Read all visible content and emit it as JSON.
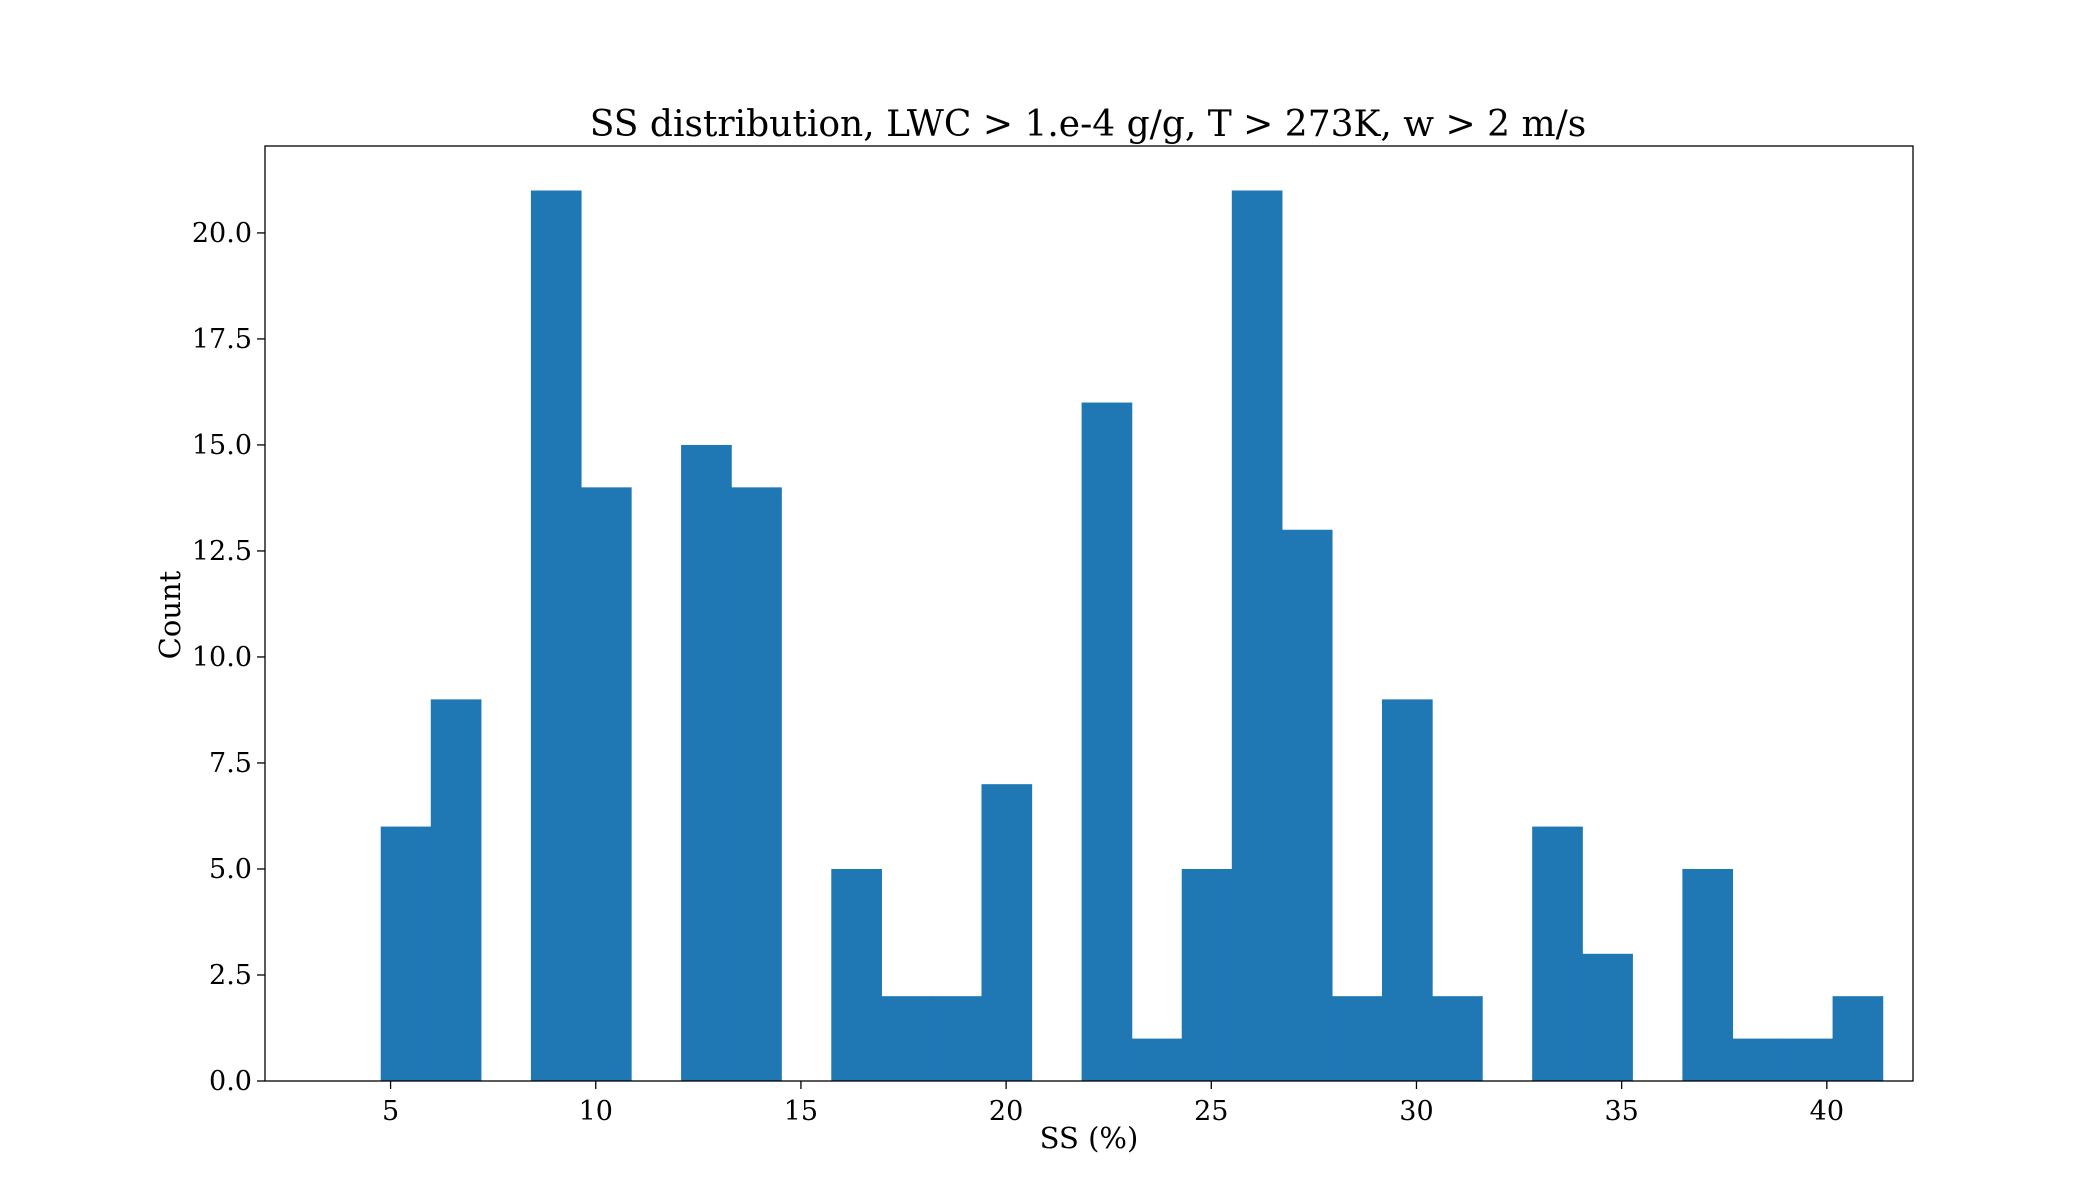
{
  "chart_data": {
    "type": "bar",
    "title": "SS distribution, LWC > 1.e-4 g/g, T > 273K, w > 2 m/s",
    "xlabel": "SS (%)",
    "ylabel": "Count",
    "bin_width": 1.22,
    "xlim": [
      1.94,
      42.1
    ],
    "ylim": [
      0,
      22.05
    ],
    "xticks": [
      5,
      10,
      15,
      20,
      25,
      30,
      35,
      40
    ],
    "xtick_labels": [
      "5",
      "10",
      "15",
      "20",
      "25",
      "30",
      "35",
      "40"
    ],
    "yticks": [
      0,
      2.5,
      5,
      7.5,
      10,
      12.5,
      15,
      17.5,
      20
    ],
    "ytick_labels": [
      "0.0",
      "2.5",
      "5.0",
      "7.5",
      "10.0",
      "12.5",
      "15.0",
      "17.5",
      "20.0"
    ],
    "bar_color": "#1f77b4",
    "grid": false,
    "bins": [
      {
        "x0": 4.76,
        "count": 6
      },
      {
        "x0": 5.98,
        "count": 9
      },
      {
        "x0": 7.2,
        "count": 0
      },
      {
        "x0": 8.42,
        "count": 21
      },
      {
        "x0": 9.64,
        "count": 14
      },
      {
        "x0": 10.86,
        "count": 0
      },
      {
        "x0": 12.08,
        "count": 15
      },
      {
        "x0": 13.3,
        "count": 14
      },
      {
        "x0": 14.52,
        "count": 0
      },
      {
        "x0": 15.74,
        "count": 5
      },
      {
        "x0": 16.96,
        "count": 2
      },
      {
        "x0": 18.18,
        "count": 2
      },
      {
        "x0": 19.4,
        "count": 7
      },
      {
        "x0": 20.62,
        "count": 0
      },
      {
        "x0": 21.84,
        "count": 16
      },
      {
        "x0": 23.06,
        "count": 1
      },
      {
        "x0": 24.28,
        "count": 5
      },
      {
        "x0": 25.5,
        "count": 21
      },
      {
        "x0": 26.72,
        "count": 13
      },
      {
        "x0": 27.94,
        "count": 2
      },
      {
        "x0": 29.16,
        "count": 9
      },
      {
        "x0": 30.38,
        "count": 2
      },
      {
        "x0": 31.6,
        "count": 0
      },
      {
        "x0": 32.82,
        "count": 6
      },
      {
        "x0": 34.04,
        "count": 3
      },
      {
        "x0": 35.26,
        "count": 0
      },
      {
        "x0": 36.48,
        "count": 5
      },
      {
        "x0": 37.7,
        "count": 1
      },
      {
        "x0": 38.92,
        "count": 1
      },
      {
        "x0": 40.14,
        "count": 2
      }
    ]
  }
}
